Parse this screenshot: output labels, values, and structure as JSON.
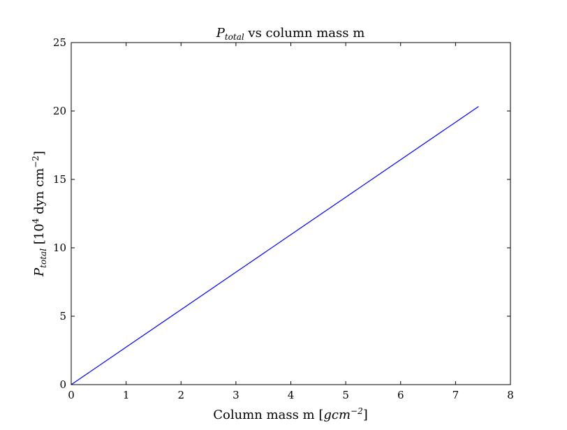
{
  "chart_data": {
    "type": "line",
    "title": {
      "symbol": "P",
      "subscript": "total",
      "rest": " vs column mass m"
    },
    "xlabel": {
      "prefix": "Column mass m [",
      "math": "gcm",
      "superscript": "−2",
      "suffix": "]"
    },
    "ylabel": {
      "symbol": "P",
      "subscript": "total",
      "mid": " [10",
      "sup1": "4",
      "mid2": " dyn cm",
      "sup2": "−2",
      "suffix": "]"
    },
    "xlim": [
      0,
      8
    ],
    "ylim": [
      0,
      25
    ],
    "xticks": [
      0,
      1,
      2,
      3,
      4,
      5,
      6,
      7,
      8
    ],
    "yticks": [
      0,
      5,
      10,
      15,
      20,
      25
    ],
    "xtick_labels": [
      "0",
      "1",
      "2",
      "3",
      "4",
      "5",
      "6",
      "7",
      "8"
    ],
    "ytick_labels": [
      "0",
      "5",
      "10",
      "15",
      "20",
      "25"
    ],
    "grid": false,
    "legend": "none",
    "series": [
      {
        "color": "#0000ff",
        "x": [
          0,
          1,
          2,
          3,
          4,
          5,
          6,
          7,
          7.42
        ],
        "y": [
          0,
          2.74,
          5.48,
          8.22,
          10.96,
          13.7,
          16.44,
          19.18,
          20.33
        ]
      }
    ]
  }
}
